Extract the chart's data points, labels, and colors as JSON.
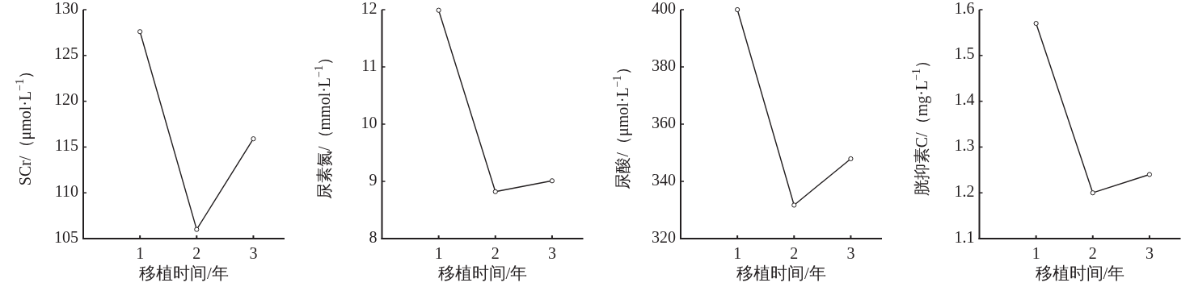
{
  "chart_data": [
    {
      "type": "line",
      "x": [
        1,
        2,
        3
      ],
      "xlim": [
        0,
        3.55
      ],
      "xticks": [
        1,
        2,
        3
      ],
      "ylim": [
        105,
        130
      ],
      "yticks": [
        105,
        110,
        115,
        120,
        125,
        130
      ],
      "xlabel": "移植时间/年",
      "ylabel": "SCr/（μmol·L$^{−1}$）",
      "marker": "circle",
      "series": [
        {
          "color": "#231f20",
          "values": [
            127.6,
            106.0,
            115.9
          ]
        }
      ]
    },
    {
      "type": "line",
      "x": [
        1,
        2,
        3
      ],
      "xlim": [
        0,
        3.55
      ],
      "xticks": [
        1,
        2,
        3
      ],
      "ylim": [
        8,
        12
      ],
      "yticks": [
        8,
        9,
        10,
        11,
        12
      ],
      "xlabel": "移植时间/年",
      "ylabel": "尿素氮/（mmol·L$^{−1}$）",
      "marker": "circle",
      "series": [
        {
          "color": "#231f20",
          "values": [
            11.99,
            8.82,
            9.01
          ]
        }
      ]
    },
    {
      "type": "line",
      "x": [
        1,
        2,
        3
      ],
      "xlim": [
        0,
        3.55
      ],
      "xticks": [
        1,
        2,
        3
      ],
      "ylim": [
        320,
        400
      ],
      "yticks": [
        320,
        340,
        360,
        380,
        400
      ],
      "xlabel": "移植时间/年",
      "ylabel": "尿酸/（μmol·L$^{−1}$）",
      "marker": "circle",
      "series": [
        {
          "color": "#231f20",
          "values": [
            400,
            331.7,
            347.9
          ]
        }
      ]
    },
    {
      "type": "line",
      "x": [
        1,
        2,
        3
      ],
      "xlim": [
        0,
        3.55
      ],
      "xticks": [
        1,
        2,
        3
      ],
      "ylim": [
        1.1,
        1.6
      ],
      "yticks": [
        1.1,
        1.2,
        1.3,
        1.4,
        1.5,
        1.6
      ],
      "xlabel": "移植时间/年",
      "ylabel": "胱抑素C/（mg·L$^{−1}$）",
      "marker": "circle",
      "series": [
        {
          "color": "#231f20",
          "values": [
            1.57,
            1.2,
            1.24
          ]
        }
      ]
    }
  ]
}
